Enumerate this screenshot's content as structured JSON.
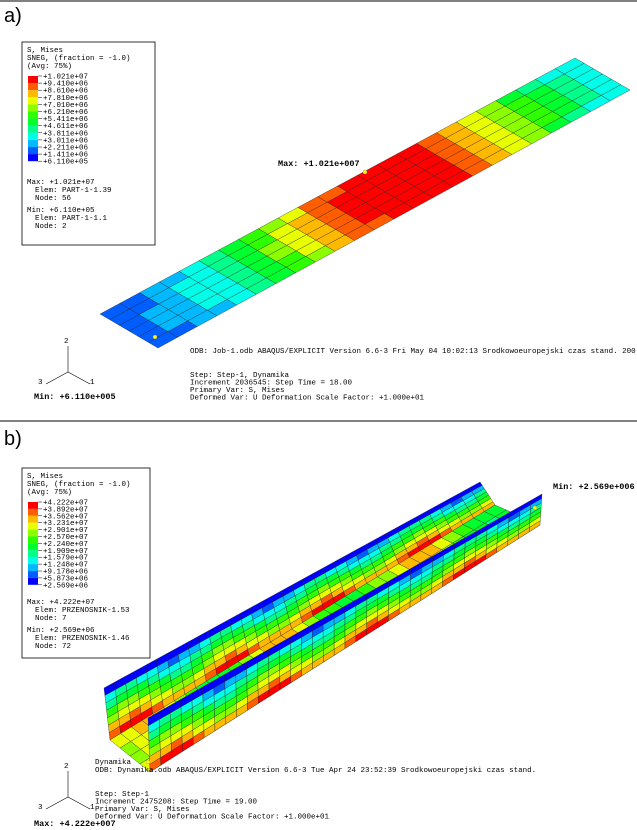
{
  "panels": [
    {
      "label": "a)",
      "legend": {
        "title": "S, Mises",
        "section": "SNEG, (fraction = -1.0)",
        "avg": "(Avg: 75%)",
        "levels": [
          "+1.021e+07",
          "+9.410e+06",
          "+8.610e+06",
          "+7.810e+06",
          "+7.010e+06",
          "+6.210e+06",
          "+5.411e+06",
          "+4.611e+06",
          "+3.811e+06",
          "+3.011e+06",
          "+2.211e+06",
          "+1.411e+06",
          "+6.110e+05"
        ],
        "summary": [
          "Max: +1.021e+07",
          "Elem: PART-1-1.39",
          "Node: 56",
          "Min: +6.110e+05",
          "Elem: PART-1-1.1",
          "Node: 2"
        ]
      },
      "max_marker": "Max: +1.021e+007",
      "min_marker": "Min: +6.110e+005",
      "header": [
        "ODB: Job-1.odb    ABAQUS/EXPLICIT Version 6.6-3    Fri May 04 10:02:13 Srodkowoeuropejski czas stand. 200"
      ],
      "step": [
        "Step: Step-1, Dynamika",
        "Increment   2036545: Step Time =    18.00",
        "Primary Var: S, Mises",
        "Deformed Var: U   Deformation Scale Factor: +1.000e+01"
      ],
      "axes": [
        "1",
        "2",
        "3"
      ]
    },
    {
      "label": "b)",
      "legend": {
        "title": "S, Mises",
        "section": "SNEG, (fraction = -1.0)",
        "avg": "(Avg: 75%)",
        "levels": [
          "+4.222e+07",
          "+3.892e+07",
          "+3.562e+07",
          "+3.231e+07",
          "+2.901e+07",
          "+2.570e+07",
          "+2.240e+07",
          "+1.909e+07",
          "+1.579e+07",
          "+1.248e+07",
          "+9.178e+06",
          "+5.873e+06",
          "+2.569e+06"
        ],
        "summary": [
          "Max: +4.222e+07",
          "Elem: PRZENOSNIK-1.53",
          "Node: 7",
          "Min: +2.569e+06",
          "Elem: PRZENOSNIK-1.46",
          "Node: 72"
        ]
      },
      "max_marker": "Max: +4.222e+007",
      "min_marker": "Min: +2.569e+006",
      "header": [
        "Dynamika",
        "ODB: Dynamika.odb    ABAQUS/EXPLICIT Version 6.6-3    Tue Apr 24 23:52:39 Srodkowoeuropejski czas stand."
      ],
      "step": [
        "Step: Step-1",
        "Increment   2475208: Step Time =    19.00",
        "Primary Var: S, Mises",
        "Deformed Var: U   Deformation Scale Factor: +1.000e+01"
      ],
      "axes": [
        "1",
        "2",
        "3"
      ]
    }
  ]
}
